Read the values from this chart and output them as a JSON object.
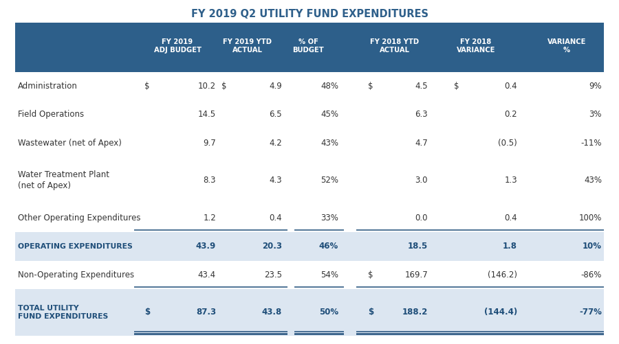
{
  "title": "FY 2019 Q2 UTILITY FUND EXPENDITURES",
  "title_color": "#2e5f8a",
  "header_bg": "#2d5f8a",
  "header_text_color": "#ffffff",
  "subtotal_bg": "#dce6f1",
  "body_bg": "#ffffff",
  "row_label_color": "#333333",
  "subtotal_label_color": "#1f4e79",
  "value_color": "#1f4e79",
  "line_color": "#1f4e79",
  "columns": [
    "FY 2019\nADJ BUDGET",
    "FY 2019 YTD\nACTUAL",
    "% OF\nBUDGET",
    "FY 2018 YTD\nACTUAL",
    "FY 2018\nVARIANCE",
    "VARIANCE\n%"
  ],
  "rows": [
    {
      "label": "Administration",
      "dollar1": true,
      "col1": "10.2",
      "dollar2": true,
      "col2": "4.9",
      "col3": "48%",
      "dollar4": true,
      "col4": "4.5",
      "dollar5": true,
      "col5": "0.4",
      "col6": "9%",
      "type": "normal",
      "line_below": false
    },
    {
      "label": "Field Operations",
      "dollar1": false,
      "col1": "14.5",
      "dollar2": false,
      "col2": "6.5",
      "col3": "45%",
      "dollar4": false,
      "col4": "6.3",
      "dollar5": false,
      "col5": "0.2",
      "col6": "3%",
      "type": "normal",
      "line_below": false
    },
    {
      "label": "Wastewater (net of Apex)",
      "dollar1": false,
      "col1": "9.7",
      "dollar2": false,
      "col2": "4.2",
      "col3": "43%",
      "dollar4": false,
      "col4": "4.7",
      "dollar5": false,
      "col5": "(0.5)",
      "col6": "-11%",
      "type": "normal",
      "line_below": false
    },
    {
      "label": "Water Treatment Plant\n(net of Apex)",
      "dollar1": false,
      "col1": "8.3",
      "dollar2": false,
      "col2": "4.3",
      "col3": "52%",
      "dollar4": false,
      "col4": "3.0",
      "dollar5": false,
      "col5": "1.3",
      "col6": "43%",
      "type": "normal",
      "line_below": false
    },
    {
      "label": "Other Operating Expenditures",
      "dollar1": false,
      "col1": "1.2",
      "dollar2": false,
      "col2": "0.4",
      "col3": "33%",
      "dollar4": false,
      "col4": "0.0",
      "dollar5": false,
      "col5": "0.4",
      "col6": "100%",
      "type": "normal",
      "line_below": true
    },
    {
      "label": "OPERATING EXPENDITURES",
      "dollar1": false,
      "col1": "43.9",
      "dollar2": false,
      "col2": "20.3",
      "col3": "46%",
      "dollar4": false,
      "col4": "18.5",
      "dollar5": false,
      "col5": "1.8",
      "col6": "10%",
      "type": "subtotal",
      "line_below": false
    },
    {
      "label": "Non-Operating Expenditures",
      "dollar1": false,
      "col1": "43.4",
      "dollar2": false,
      "col2": "23.5",
      "col3": "54%",
      "dollar4": true,
      "col4": "169.7",
      "dollar5": false,
      "col5": "(146.2)",
      "col6": "-86%",
      "type": "normal",
      "line_below": true
    },
    {
      "label": "TOTAL UTILITY\nFUND EXPENDITURES",
      "dollar1": true,
      "col1": "87.3",
      "dollar2": false,
      "col2": "43.8",
      "col3": "50%",
      "dollar4": true,
      "col4": "188.2",
      "dollar5": false,
      "col5": "(144.4)",
      "col6": "-77%",
      "type": "total",
      "line_below": true
    }
  ]
}
